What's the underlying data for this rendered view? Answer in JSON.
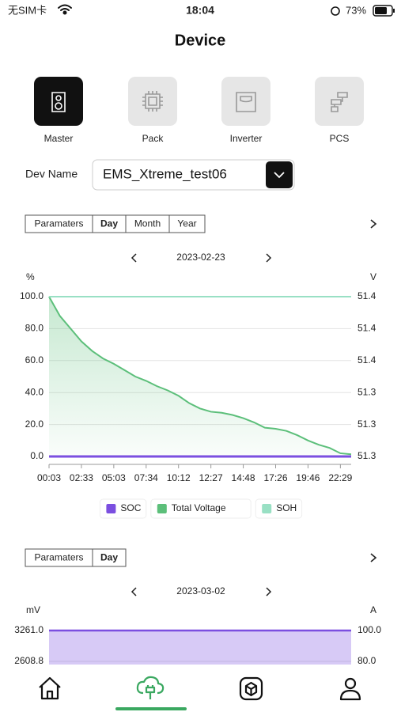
{
  "status_bar": {
    "carrier": "无SIM卡",
    "time": "18:04",
    "battery": "73%"
  },
  "header": {
    "title": "Device"
  },
  "device_tabs": [
    {
      "label": "Master",
      "active": true
    },
    {
      "label": "Pack",
      "active": false
    },
    {
      "label": "Inverter",
      "active": false
    },
    {
      "label": "PCS",
      "active": false
    }
  ],
  "dev_name": {
    "label": "Dev Name",
    "value": "EMS_Xtreme_test06"
  },
  "panels": [
    {
      "tabs": [
        "Paramaters",
        "Day",
        "Month",
        "Year"
      ],
      "active_tab": 1,
      "date": "2023-02-23"
    },
    {
      "tabs": [
        "Paramaters",
        "Day"
      ],
      "active_tab": 1,
      "date": "2023-03-02"
    }
  ],
  "chart_data": [
    {
      "type": "line",
      "ylabel": "%",
      "y2label": "V",
      "categories": [
        "00:03",
        null,
        null,
        "02:33",
        null,
        null,
        "05:03",
        null,
        null,
        "07:34",
        null,
        null,
        "10:12",
        null,
        null,
        "12:27",
        null,
        null,
        "14:48",
        null,
        null,
        "17:26",
        null,
        null,
        "19:46",
        null,
        null,
        "22:29",
        null
      ],
      "series": [
        {
          "name": "SOC",
          "color": "#7b4fe0",
          "values": [
            0,
            0,
            0,
            0,
            0,
            0,
            0,
            0,
            0,
            0,
            0,
            0,
            0,
            0,
            0,
            0,
            0,
            0,
            0,
            0,
            0,
            0,
            0,
            0,
            0,
            0,
            0,
            0,
            0
          ]
        },
        {
          "name": "Total Voltage",
          "color": "#5cbf7a",
          "axis": "y2",
          "values": [
            51.42,
            51.402,
            51.39,
            51.378,
            51.369,
            51.362,
            51.357,
            51.351,
            51.345,
            51.341,
            51.336,
            51.332,
            51.327,
            51.32,
            51.315,
            51.312,
            51.311,
            51.309,
            51.306,
            51.302,
            51.297,
            51.296,
            51.294,
            51.29,
            51.285,
            51.281,
            51.278,
            51.273,
            51.272
          ]
        },
        {
          "name": "SOH",
          "color": "#99e0c4",
          "values": [
            100,
            100,
            100,
            100,
            100,
            100,
            100,
            100,
            100,
            100,
            100,
            100,
            100,
            100,
            100,
            100,
            100,
            100,
            100,
            100,
            100,
            100,
            100,
            100,
            100,
            100,
            100,
            100,
            100
          ]
        }
      ],
      "ylim": [
        0,
        100
      ],
      "yticks": [
        {
          "value": 0,
          "label": "0.0"
        },
        {
          "value": 20,
          "label": "20.0"
        },
        {
          "value": 40,
          "label": "40.0"
        },
        {
          "value": 60,
          "label": "60.0"
        },
        {
          "value": 80,
          "label": "80.0"
        },
        {
          "value": 100,
          "label": "100.0"
        }
      ],
      "y2lim": [
        51.27,
        51.42
      ],
      "y2ticks": [
        {
          "value": 51.27,
          "label": "51.3"
        },
        {
          "value": 51.3,
          "label": "51.3"
        },
        {
          "value": 51.33,
          "label": "51.3"
        },
        {
          "value": 51.36,
          "label": "51.4"
        },
        {
          "value": 51.39,
          "label": "51.4"
        },
        {
          "value": 51.42,
          "label": "51.4"
        }
      ],
      "grid": true,
      "legend": "bottom"
    },
    {
      "type": "area",
      "ylabel": "mV",
      "y2label": "A",
      "series": [
        {
          "color": "#7b4fe0",
          "values": [
            3261,
            3261
          ]
        }
      ],
      "ylim": [
        2608.8,
        3261.0
      ],
      "yticks": [
        2608.8,
        {
          "value": 3261.0,
          "label": "3261.0"
        }
      ],
      "y2lim": [
        80,
        100
      ],
      "y2ticks": [
        {
          "value": 80,
          "label": "80.0"
        },
        {
          "value": 100,
          "label": "100.0"
        }
      ],
      "grid": true
    }
  ]
}
